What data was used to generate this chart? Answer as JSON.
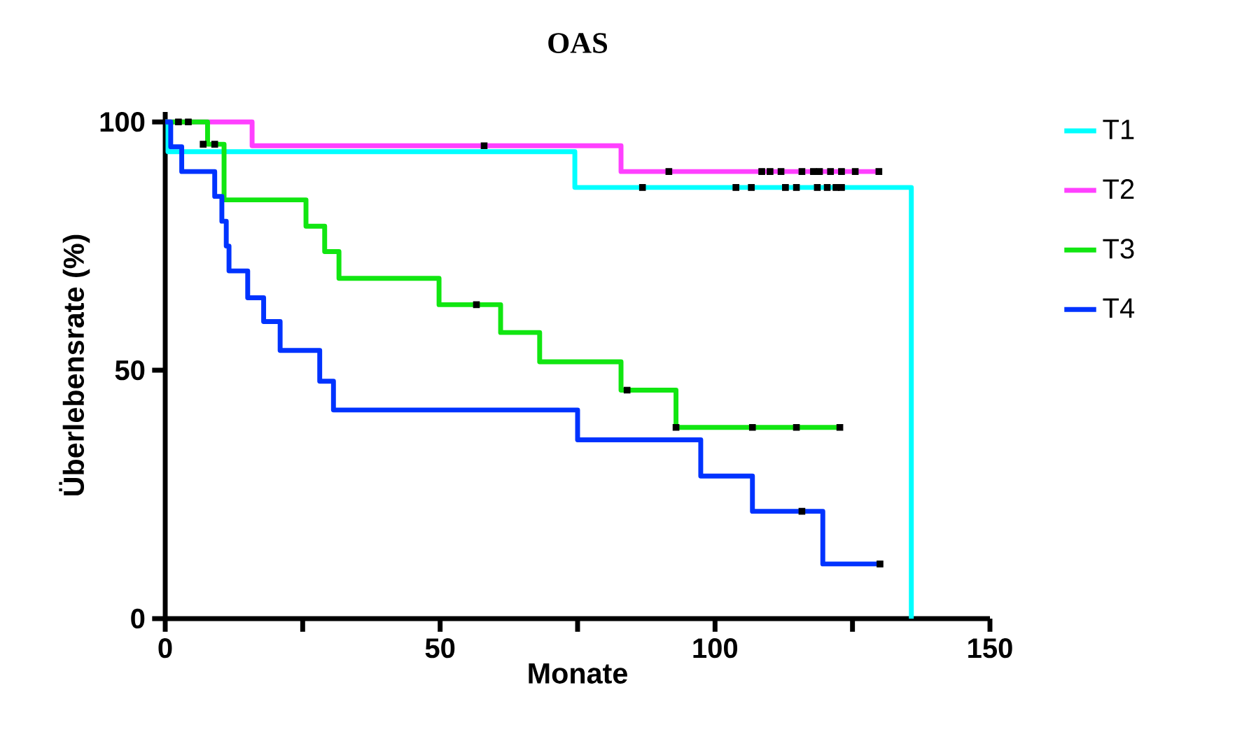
{
  "chart_data": {
    "type": "step",
    "title": "OAS",
    "xlabel": "Monate",
    "ylabel": "Überlebensrate (%)",
    "xlim": [
      0,
      150
    ],
    "ylim": [
      0,
      102
    ],
    "xticks": [
      0,
      {
        "value": 25,
        "label": null
      },
      50,
      {
        "value": 75,
        "label": null
      },
      100,
      {
        "value": 125,
        "label": null
      },
      150
    ],
    "yticks": [
      0,
      50,
      100
    ],
    "grid": false,
    "legend": "right",
    "marker": "none",
    "line_style": "solid",
    "series": [
      {
        "name": "T1",
        "color": "#00ffff",
        "x": [
          0,
          0.5,
          74.5,
          135.7
        ],
        "values": [
          100,
          94,
          86.8,
          0
        ]
      },
      {
        "name": "T2",
        "color": "#ff40ff",
        "x": [
          0,
          15.8,
          82.9,
          130
        ],
        "values": [
          100,
          95.2,
          90,
          90
        ]
      },
      {
        "name": "T3",
        "color": "#11e611",
        "x": [
          0,
          7.7,
          10.7,
          25.6,
          29,
          31.6,
          49.8,
          61,
          68.1,
          82.9,
          92.9,
          123
        ],
        "values": [
          100,
          95.5,
          84.3,
          79,
          73.9,
          68.5,
          63.2,
          57.6,
          51.7,
          46,
          38.5,
          38.5
        ]
      },
      {
        "name": "T4",
        "color": "#0033ff",
        "x": [
          0,
          1,
          3,
          9,
          10.3,
          11.1,
          11.6,
          15,
          17.9,
          20.9,
          28.1,
          30.6,
          75,
          97.4,
          106.8,
          119.6,
          130
        ],
        "values": [
          100,
          95,
          90,
          85,
          80,
          75,
          70,
          64.6,
          59.8,
          54,
          47.8,
          42,
          36,
          28.7,
          21.6,
          11,
          11
        ]
      },
      {
        "type": "scatter",
        "marker": "square",
        "color": "#000000",
        "x": [
          2.4,
          4.2,
          58,
          91.6,
          108.5,
          110,
          112,
          115.8,
          117.9,
          119,
          121,
          123,
          125.5,
          129.8,
          86.8,
          103.8,
          106.6,
          112.8,
          114.8,
          118.6,
          120.4,
          122,
          123,
          6.9,
          9,
          56.6,
          84,
          92.9,
          106.8,
          114.8,
          122.7,
          115.8,
          130
        ],
        "values": [
          100,
          100,
          95.2,
          90,
          90,
          90,
          90,
          90,
          90,
          90,
          90,
          90,
          90,
          90,
          86.8,
          86.8,
          86.8,
          86.8,
          86.8,
          86.8,
          86.8,
          86.8,
          86.8,
          95.5,
          95.5,
          63.2,
          46,
          38.5,
          38.5,
          38.5,
          38.5,
          21.6,
          11
        ]
      }
    ]
  }
}
